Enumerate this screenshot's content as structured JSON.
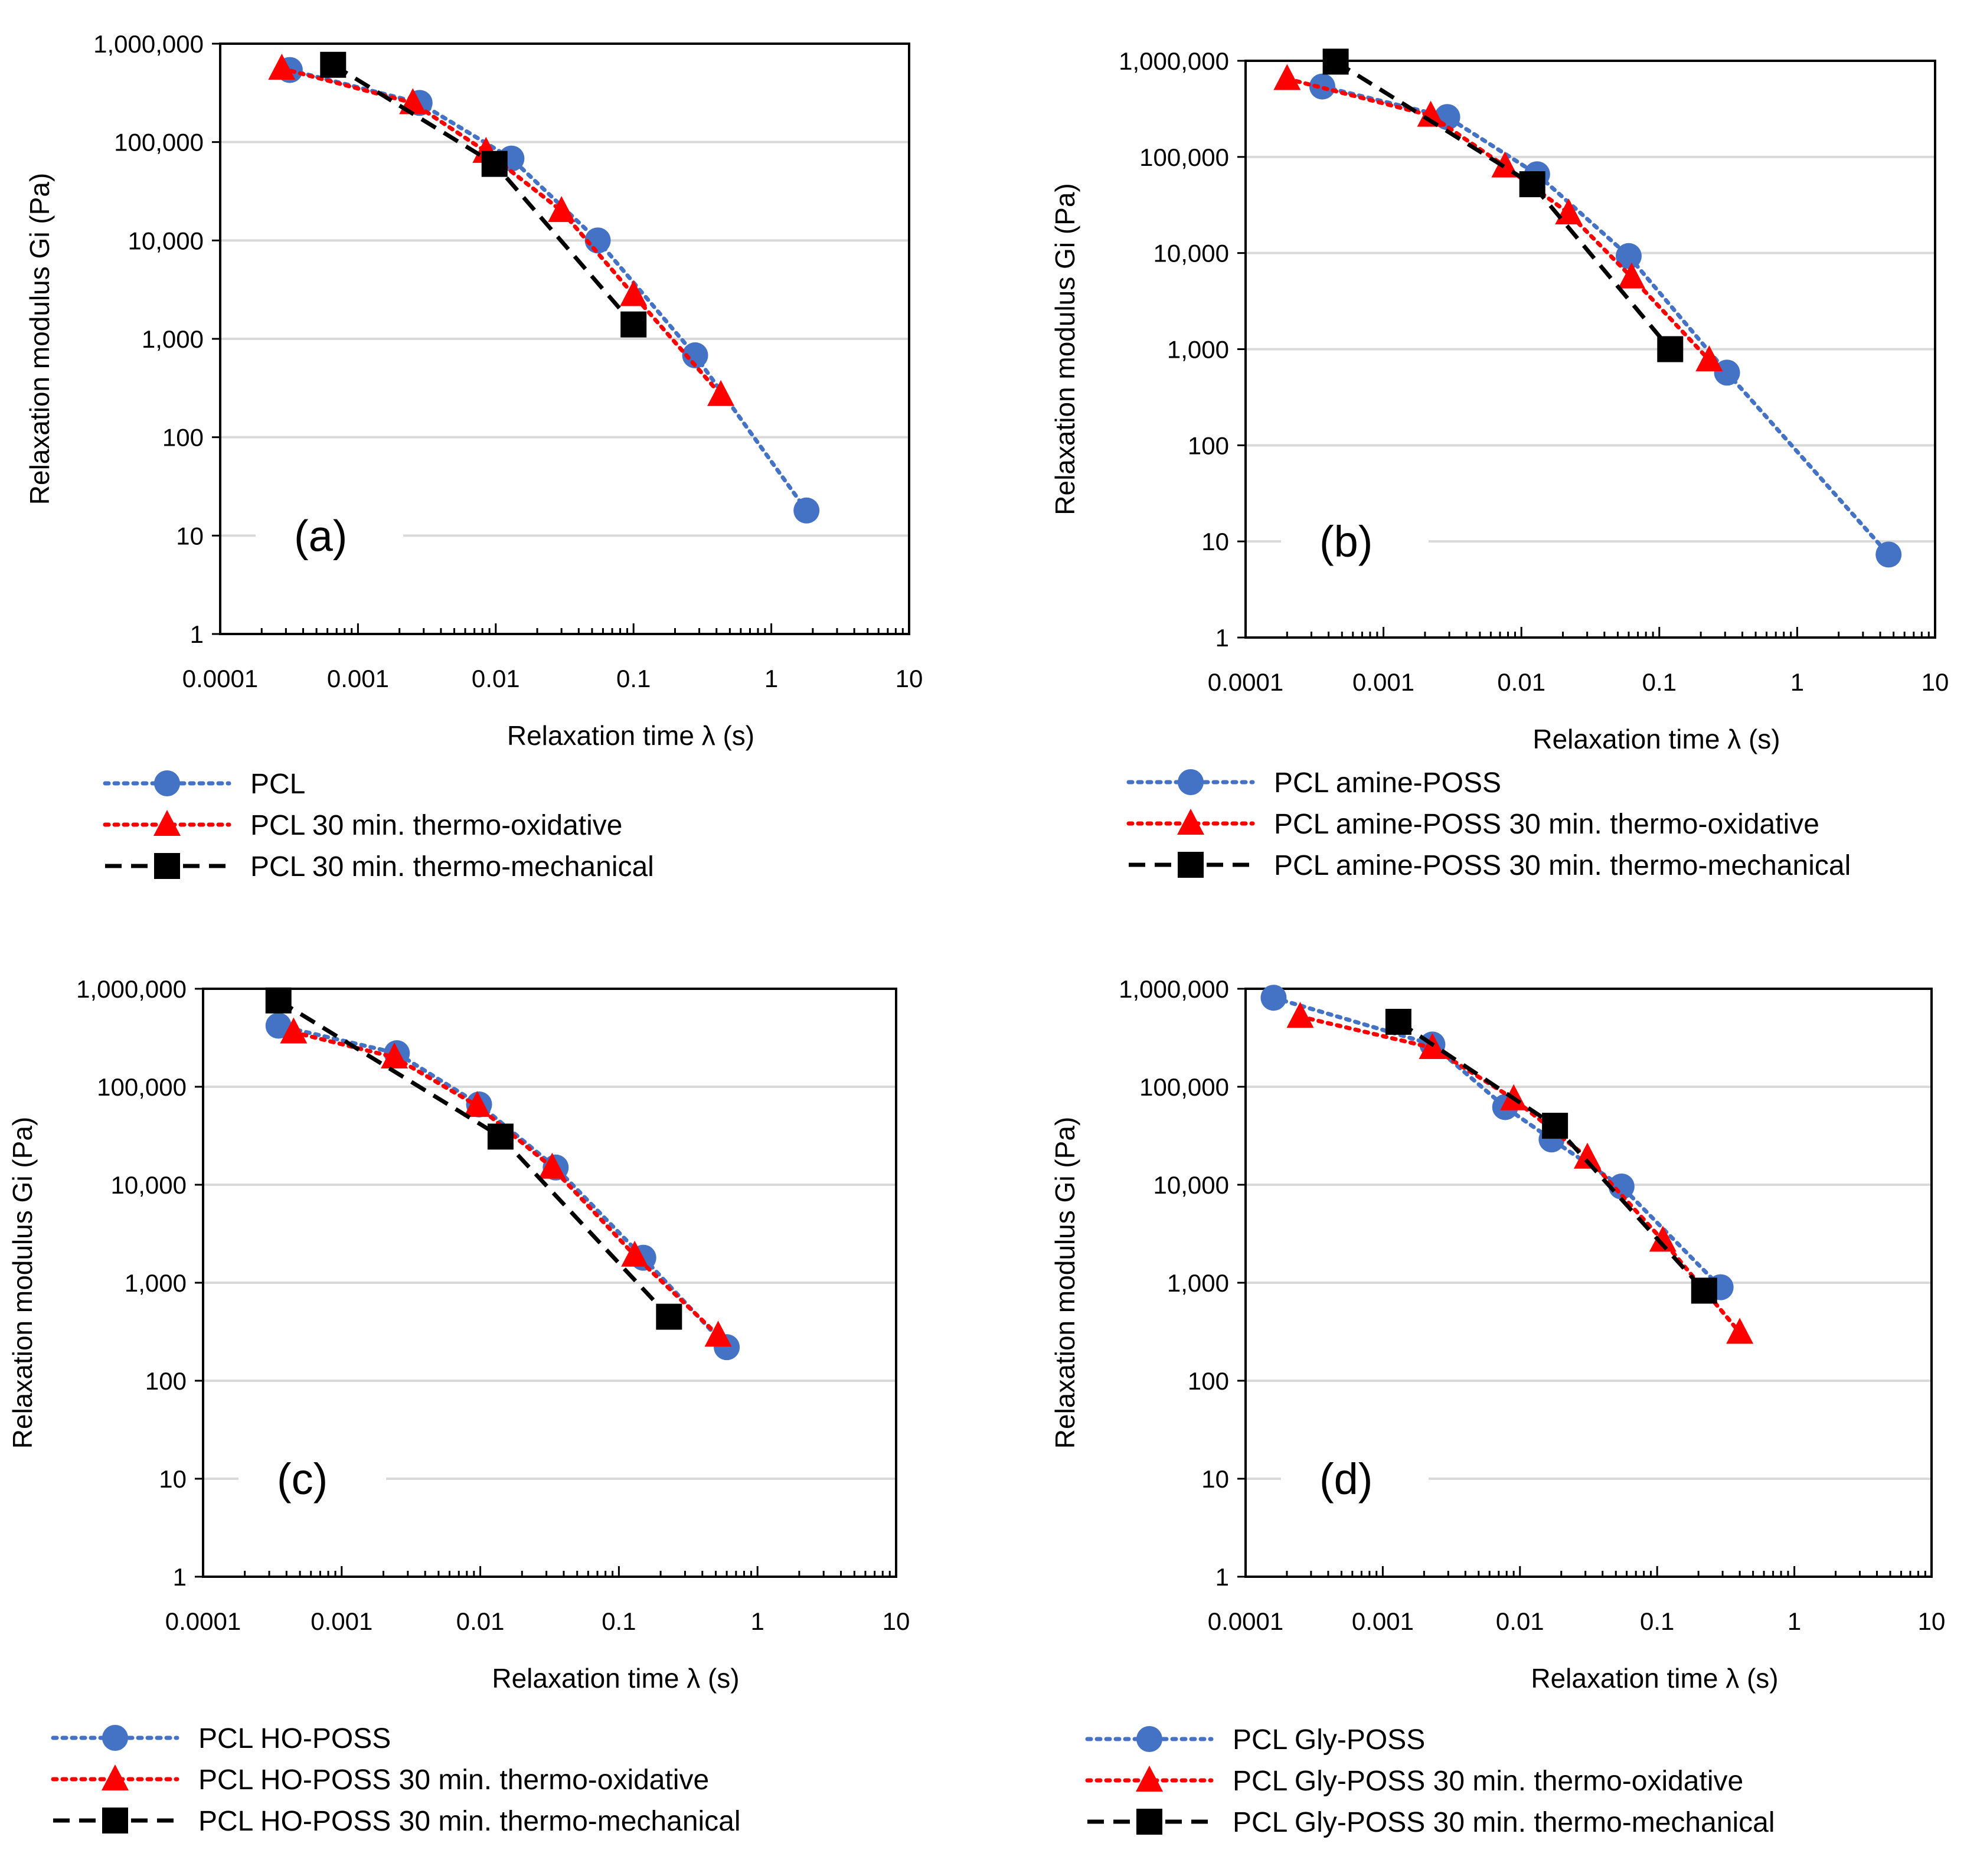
{
  "chart_data": [
    {
      "type": "scatter",
      "panel_label": "(a)",
      "xlabel": "Relaxation time λ (s)",
      "ylabel": "Relaxation modulus Gi (Pa)",
      "x_scale": "log",
      "y_scale": "log",
      "xlim": [
        0.0001,
        10
      ],
      "ylim": [
        1,
        1000000
      ],
      "x_ticks": [
        "0.0001",
        "0.001",
        "0.01",
        "0.1",
        "1",
        "10"
      ],
      "y_ticks": [
        "1",
        "10",
        "100",
        "1,000",
        "10,000",
        "100,000",
        "1,000,000"
      ],
      "grid": "horizontal",
      "legend": "bottom",
      "series": [
        {
          "name": "PCL",
          "color": "#4472C4",
          "line": "dotted",
          "marker": "circle",
          "x": [
            0.00032,
            0.0028,
            0.013,
            0.055,
            0.28,
            1.8
          ],
          "y": [
            540000,
            250000,
            68000,
            10000,
            680,
            18
          ]
        },
        {
          "name": "PCL 30 min. thermo-oxidative",
          "color": "#FF0000",
          "line": "dotted",
          "marker": "triangle",
          "x": [
            0.00028,
            0.0025,
            0.0085,
            0.03,
            0.1,
            0.43
          ],
          "y": [
            560000,
            250000,
            80000,
            20000,
            2800,
            270
          ]
        },
        {
          "name": "PCL 30 min. thermo-mechanical",
          "color": "#000000",
          "line": "dashed",
          "marker": "square",
          "x": [
            0.00066,
            0.0098,
            0.1
          ],
          "y": [
            610000,
            60000,
            1400
          ]
        }
      ]
    },
    {
      "type": "scatter",
      "panel_label": "(b)",
      "xlabel": "Relaxation time λ (s)",
      "ylabel": "Relaxation modulus Gi (Pa)",
      "x_scale": "log",
      "y_scale": "log",
      "xlim": [
        0.0001,
        10
      ],
      "ylim": [
        1,
        1000000
      ],
      "x_ticks": [
        "0.0001",
        "0.001",
        "0.01",
        "0.1",
        "1",
        "10"
      ],
      "y_ticks": [
        "1",
        "10",
        "100",
        "1,000",
        "10,000",
        "100,000",
        "1,000,000"
      ],
      "grid": "horizontal",
      "legend": "bottom",
      "series": [
        {
          "name": "PCL amine-POSS",
          "color": "#4472C4",
          "line": "dotted",
          "marker": "circle",
          "x": [
            0.00036,
            0.0029,
            0.013,
            0.06,
            0.31,
            4.6
          ],
          "y": [
            540000,
            260000,
            66000,
            9300,
            570,
            7.3
          ]
        },
        {
          "name": "PCL amine-POSS 30 min. thermo-oxidative",
          "color": "#FF0000",
          "line": "dotted",
          "marker": "triangle",
          "x": [
            0.0002,
            0.0022,
            0.0076,
            0.022,
            0.063,
            0.23
          ],
          "y": [
            650000,
            270000,
            80000,
            26000,
            5600,
            770
          ]
        },
        {
          "name": "PCL amine-POSS 30 min. thermo-mechanical",
          "color": "#000000",
          "line": "dashed",
          "marker": "square",
          "x": [
            0.00045,
            0.012,
            0.12
          ],
          "y": [
            980000,
            52000,
            1000
          ]
        }
      ]
    },
    {
      "type": "scatter",
      "panel_label": "(c)",
      "xlabel": "Relaxation time λ (s)",
      "ylabel": "Relaxation modulus Gi (Pa)",
      "x_scale": "log",
      "y_scale": "log",
      "xlim": [
        0.0001,
        10
      ],
      "ylim": [
        1,
        1000000
      ],
      "x_ticks": [
        "0.0001",
        "0.001",
        "0.01",
        "0.1",
        "1",
        "10"
      ],
      "y_ticks": [
        "1",
        "10",
        "100",
        "1,000",
        "10,000",
        "100,000",
        "1,000,000"
      ],
      "grid": "horizontal",
      "legend": "bottom",
      "series": [
        {
          "name": "PCL HO-POSS",
          "color": "#4472C4",
          "line": "dotted",
          "marker": "circle",
          "x": [
            0.00035,
            0.0025,
            0.0098,
            0.035,
            0.15,
            0.6
          ],
          "y": [
            420000,
            220000,
            66000,
            15000,
            1800,
            220
          ]
        },
        {
          "name": "PCL HO-POSS 30 min. thermo-oxidative",
          "color": "#FF0000",
          "line": "dotted",
          "marker": "triangle",
          "x": [
            0.00045,
            0.0024,
            0.0095,
            0.033,
            0.13,
            0.52
          ],
          "y": [
            360000,
            200000,
            64000,
            15000,
            1900,
            290
          ]
        },
        {
          "name": "PCL HO-POSS 30 min. thermo-mechanical",
          "color": "#000000",
          "line": "dashed",
          "marker": "square",
          "x": [
            0.00035,
            0.014,
            0.23
          ],
          "y": [
            760000,
            31000,
            450
          ]
        }
      ]
    },
    {
      "type": "scatter",
      "panel_label": "(d)",
      "xlabel": "Relaxation time λ (s)",
      "ylabel": "Relaxation modulus Gi (Pa)",
      "x_scale": "log",
      "y_scale": "log",
      "xlim": [
        0.0001,
        10
      ],
      "ylim": [
        1,
        1000000
      ],
      "x_ticks": [
        "0.0001",
        "0.001",
        "0.01",
        "0.1",
        "1",
        "10"
      ],
      "y_ticks": [
        "1",
        "10",
        "100",
        "1,000",
        "10,000",
        "100,000",
        "1,000,000"
      ],
      "grid": "horizontal",
      "legend": "bottom",
      "series": [
        {
          "name": "PCL Gly-POSS",
          "color": "#4472C4",
          "line": "dotted",
          "marker": "circle",
          "x": [
            0.00016,
            0.0023,
            0.0078,
            0.017,
            0.055,
            0.29
          ],
          "y": [
            810000,
            270000,
            62000,
            29000,
            9600,
            900
          ]
        },
        {
          "name": "PCL Gly-POSS 30 min. thermo-oxidative",
          "color": "#FF0000",
          "line": "dotted",
          "marker": "triangle",
          "x": [
            0.00025,
            0.0023,
            0.009,
            0.031,
            0.11,
            0.4
          ],
          "y": [
            520000,
            250000,
            75000,
            19000,
            2700,
            310
          ]
        },
        {
          "name": "PCL Gly-POSS 30 min. thermo-mechanical",
          "color": "#000000",
          "line": "dashed",
          "marker": "square",
          "x": [
            0.0013,
            0.018,
            0.22
          ],
          "y": [
            460000,
            40000,
            830
          ]
        }
      ]
    }
  ]
}
